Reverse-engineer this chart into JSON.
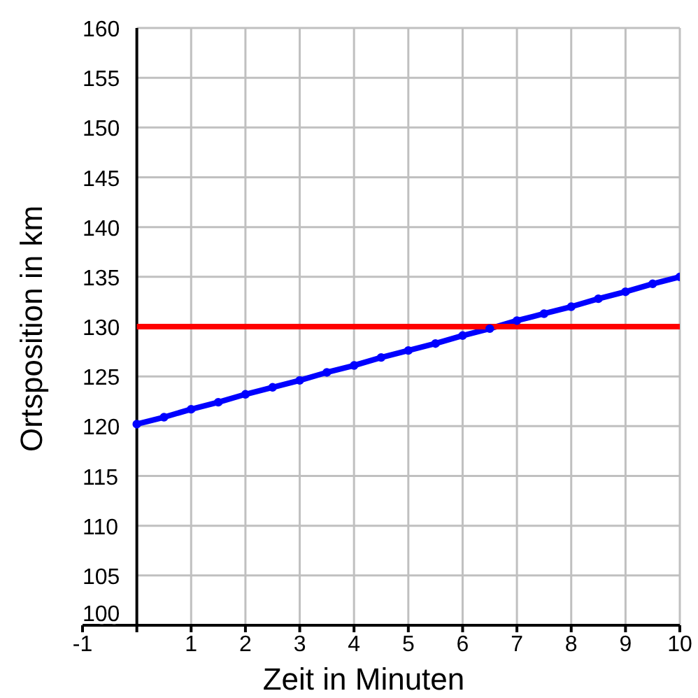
{
  "chart_data": {
    "type": "line",
    "xlabel": "Zeit in Minuten",
    "ylabel": "Ortsposition in km",
    "xlim": [
      -1,
      10
    ],
    "xticks": [
      -1,
      {
        "value": 0,
        "label": null
      },
      1,
      2,
      3,
      4,
      5,
      6,
      7,
      8,
      9,
      10
    ],
    "ylim": [
      100,
      160
    ],
    "yticks": [
      100,
      105,
      110,
      115,
      120,
      125,
      130,
      135,
      140,
      145,
      150,
      155,
      160
    ],
    "grid": true,
    "series": [
      {
        "color": "#0000ff",
        "marker": "circle",
        "x": [
          0,
          0.5,
          1,
          1.5,
          2,
          2.5,
          3,
          3.5,
          4,
          4.5,
          5,
          5.5,
          6,
          6.5,
          7,
          7.5,
          8,
          8.5,
          9,
          9.5,
          10
        ],
        "values": [
          120.2,
          120.9,
          121.7,
          122.4,
          123.2,
          123.9,
          124.6,
          125.4,
          126.1,
          126.9,
          127.6,
          128.3,
          129.1,
          129.8,
          130.6,
          131.3,
          132.0,
          132.8,
          133.5,
          134.3,
          135.0
        ]
      },
      {
        "color": "#ff0000",
        "marker": "none",
        "x": [
          0,
          10
        ],
        "values": [
          130,
          130
        ]
      }
    ]
  }
}
